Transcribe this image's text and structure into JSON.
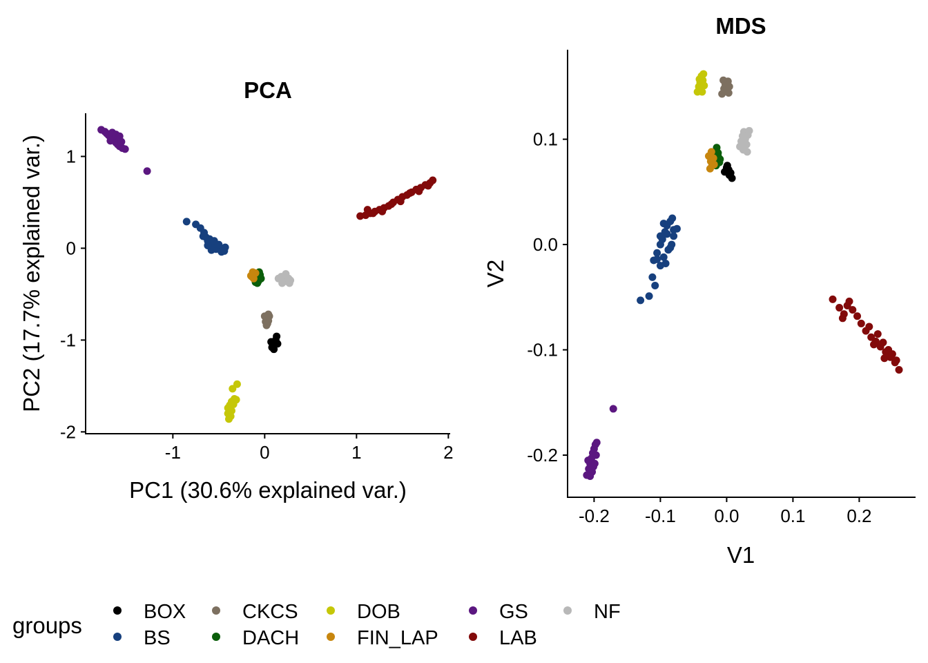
{
  "colors": {
    "BOX": "#000000",
    "BS": "#17407e",
    "CKCS": "#7d7060",
    "DACH": "#0b5e0b",
    "DOB": "#c5c708",
    "FIN_LAP": "#c7860e",
    "GS": "#5b1780",
    "LAB": "#820a0a",
    "NF": "#b8b8b8"
  },
  "legend": {
    "title": "groups",
    "items": [
      "BOX",
      "BS",
      "CKCS",
      "DACH",
      "DOB",
      "FIN_LAP",
      "GS",
      "LAB",
      "NF"
    ]
  },
  "chart_data": [
    {
      "type": "scatter",
      "title": "PCA",
      "xlabel": "PC1 (30.6% explained var.)",
      "ylabel": "PC2 (17.7% explained var.)",
      "xlim": [
        -1.95,
        2.02
      ],
      "ylim": [
        -2.02,
        1.47
      ],
      "xticks": [
        -1,
        0,
        1,
        2
      ],
      "xtick_labels": [
        "-1",
        "0",
        "1",
        "2"
      ],
      "yticks": [
        -2,
        -1,
        0,
        1
      ],
      "ytick_labels": [
        "-2",
        "-1",
        "0",
        "1"
      ],
      "grid": false,
      "series": [
        {
          "name": "BOX",
          "points": [
            [
              0.07,
              -1.02
            ],
            [
              0.09,
              -1.06
            ],
            [
              0.1,
              -1.1
            ],
            [
              0.12,
              -1.0
            ],
            [
              0.13,
              -0.96
            ],
            [
              0.14,
              -1.04
            ],
            [
              0.08,
              -1.08
            ],
            [
              0.11,
              -1.03
            ]
          ]
        },
        {
          "name": "BS",
          "points": [
            [
              -0.85,
              0.29
            ],
            [
              -0.75,
              0.26
            ],
            [
              -0.7,
              0.22
            ],
            [
              -0.66,
              0.17
            ],
            [
              -0.64,
              0.12
            ],
            [
              -0.6,
              0.1
            ],
            [
              -0.58,
              0.06
            ],
            [
              -0.55,
              0.04
            ],
            [
              -0.52,
              0.02
            ],
            [
              -0.5,
              0.0
            ],
            [
              -0.48,
              -0.02
            ],
            [
              -0.45,
              -0.01
            ],
            [
              -0.44,
              -0.03
            ],
            [
              -0.47,
              -0.04
            ],
            [
              -0.53,
              -0.01
            ],
            [
              -0.57,
              0.03
            ],
            [
              -0.62,
              0.08
            ],
            [
              -0.67,
              0.13
            ],
            [
              -0.55,
              0.08
            ],
            [
              -0.5,
              0.04
            ],
            [
              -0.43,
              0.01
            ],
            [
              -0.58,
              -0.02
            ],
            [
              -0.62,
              0.03
            ],
            [
              -0.46,
              -0.03
            ]
          ]
        },
        {
          "name": "CKCS",
          "points": [
            [
              0.0,
              -0.74
            ],
            [
              0.02,
              -0.76
            ],
            [
              0.04,
              -0.79
            ],
            [
              0.03,
              -0.82
            ],
            [
              0.01,
              -0.8
            ],
            [
              0.05,
              -0.74
            ],
            [
              0.02,
              -0.84
            ],
            [
              0.04,
              -0.72
            ]
          ]
        },
        {
          "name": "DACH",
          "points": [
            [
              -0.1,
              -0.28
            ],
            [
              -0.08,
              -0.3
            ],
            [
              -0.06,
              -0.32
            ],
            [
              -0.09,
              -0.34
            ],
            [
              -0.07,
              -0.36
            ],
            [
              -0.05,
              -0.29
            ],
            [
              -0.1,
              -0.37
            ],
            [
              -0.06,
              -0.26
            ],
            [
              -0.08,
              -0.38
            ],
            [
              -0.04,
              -0.33
            ]
          ]
        },
        {
          "name": "DOB",
          "points": [
            [
              -0.3,
              -1.48
            ],
            [
              -0.35,
              -1.53
            ],
            [
              -0.33,
              -1.64
            ],
            [
              -0.36,
              -1.67
            ],
            [
              -0.38,
              -1.71
            ],
            [
              -0.4,
              -1.74
            ],
            [
              -0.36,
              -1.77
            ],
            [
              -0.4,
              -1.8
            ],
            [
              -0.37,
              -1.83
            ],
            [
              -0.39,
              -1.86
            ],
            [
              -0.34,
              -1.7
            ],
            [
              -0.31,
              -1.65
            ]
          ]
        },
        {
          "name": "FIN_LAP",
          "points": [
            [
              -0.15,
              -0.3
            ],
            [
              -0.13,
              -0.26
            ],
            [
              -0.12,
              -0.33
            ],
            [
              -0.1,
              -0.27
            ],
            [
              -0.14,
              -0.31
            ]
          ]
        },
        {
          "name": "GS",
          "points": [
            [
              -1.78,
              1.29
            ],
            [
              -1.74,
              1.27
            ],
            [
              -1.72,
              1.25
            ],
            [
              -1.7,
              1.23
            ],
            [
              -1.68,
              1.21
            ],
            [
              -1.66,
              1.2
            ],
            [
              -1.64,
              1.18
            ],
            [
              -1.62,
              1.15
            ],
            [
              -1.6,
              1.13
            ],
            [
              -1.58,
              1.11
            ],
            [
              -1.55,
              1.09
            ],
            [
              -1.52,
              1.08
            ],
            [
              -1.66,
              1.26
            ],
            [
              -1.62,
              1.24
            ],
            [
              -1.58,
              1.22
            ],
            [
              -1.56,
              1.16
            ],
            [
              -1.68,
              1.17
            ],
            [
              -1.28,
              0.84
            ]
          ]
        },
        {
          "name": "LAB",
          "points": [
            [
              1.04,
              0.35
            ],
            [
              1.1,
              0.36
            ],
            [
              1.15,
              0.38
            ],
            [
              1.2,
              0.4
            ],
            [
              1.25,
              0.42
            ],
            [
              1.3,
              0.44
            ],
            [
              1.35,
              0.46
            ],
            [
              1.4,
              0.5
            ],
            [
              1.45,
              0.53
            ],
            [
              1.5,
              0.56
            ],
            [
              1.55,
              0.58
            ],
            [
              1.6,
              0.61
            ],
            [
              1.65,
              0.64
            ],
            [
              1.7,
              0.66
            ],
            [
              1.75,
              0.69
            ],
            [
              1.8,
              0.71
            ],
            [
              1.83,
              0.74
            ],
            [
              1.12,
              0.42
            ],
            [
              1.18,
              0.38
            ],
            [
              1.28,
              0.4
            ],
            [
              1.38,
              0.48
            ],
            [
              1.48,
              0.51
            ],
            [
              1.58,
              0.6
            ],
            [
              1.68,
              0.62
            ],
            [
              1.78,
              0.68
            ]
          ]
        },
        {
          "name": "NF",
          "points": [
            [
              0.15,
              -0.33
            ],
            [
              0.18,
              -0.31
            ],
            [
              0.2,
              -0.35
            ],
            [
              0.22,
              -0.3
            ],
            [
              0.24,
              -0.36
            ],
            [
              0.26,
              -0.33
            ],
            [
              0.28,
              -0.35
            ],
            [
              0.19,
              -0.38
            ],
            [
              0.23,
              -0.28
            ],
            [
              0.27,
              -0.38
            ]
          ]
        }
      ]
    },
    {
      "type": "scatter",
      "title": "MDS",
      "xlabel": "V1",
      "ylabel": "V2",
      "xlim": [
        -0.24,
        0.285
      ],
      "ylim": [
        -0.24,
        0.185
      ],
      "xticks": [
        -0.2,
        -0.1,
        0.0,
        0.1,
        0.2
      ],
      "xtick_labels": [
        "-0.2",
        "-0.1",
        "0.0",
        "0.1",
        "0.2"
      ],
      "yticks": [
        -0.2,
        -0.1,
        0.0,
        0.1
      ],
      "ytick_labels": [
        "-0.2",
        "-0.1",
        "0.0",
        "0.1"
      ],
      "grid": false,
      "series": [
        {
          "name": "BOX",
          "points": [
            [
              -0.003,
              0.069
            ],
            [
              0.0,
              0.073
            ],
            [
              0.003,
              0.071
            ],
            [
              0.006,
              0.068
            ],
            [
              0.008,
              0.063
            ],
            [
              0.004,
              0.066
            ],
            [
              0.001,
              0.075
            ]
          ]
        },
        {
          "name": "BS",
          "points": [
            [
              -0.13,
              -0.053
            ],
            [
              -0.117,
              -0.049
            ],
            [
              -0.108,
              -0.039
            ],
            [
              -0.112,
              -0.031
            ],
            [
              -0.11,
              -0.015
            ],
            [
              -0.105,
              -0.008
            ],
            [
              -0.1,
              0.0
            ],
            [
              -0.097,
              0.005
            ],
            [
              -0.093,
              0.012
            ],
            [
              -0.09,
              0.018
            ],
            [
              -0.085,
              0.022
            ],
            [
              -0.082,
              0.025
            ],
            [
              -0.08,
              0.014
            ],
            [
              -0.088,
              -0.005
            ],
            [
              -0.095,
              -0.012
            ],
            [
              -0.1,
              -0.02
            ],
            [
              -0.092,
              -0.018
            ],
            [
              -0.085,
              -0.003
            ],
            [
              -0.08,
              0.008
            ],
            [
              -0.075,
              0.015
            ],
            [
              -0.09,
              0.01
            ],
            [
              -0.1,
              0.008
            ],
            [
              -0.105,
              -0.014
            ],
            [
              -0.083,
              0.0
            ],
            [
              -0.095,
              0.02
            ]
          ]
        },
        {
          "name": "CKCS",
          "points": [
            [
              -0.007,
              0.143
            ],
            [
              -0.004,
              0.148
            ],
            [
              -0.002,
              0.152
            ],
            [
              0.0,
              0.147
            ],
            [
              0.002,
              0.155
            ],
            [
              0.004,
              0.15
            ],
            [
              0.003,
              0.144
            ],
            [
              -0.005,
              0.156
            ]
          ]
        },
        {
          "name": "DACH",
          "points": [
            [
              -0.019,
              0.083
            ],
            [
              -0.017,
              0.088
            ],
            [
              -0.015,
              0.092
            ],
            [
              -0.013,
              0.084
            ],
            [
              -0.011,
              0.078
            ],
            [
              -0.016,
              0.075
            ],
            [
              -0.013,
              0.087
            ],
            [
              -0.01,
              0.081
            ],
            [
              -0.018,
              0.079
            ]
          ]
        },
        {
          "name": "DOB",
          "points": [
            [
              -0.044,
              0.145
            ],
            [
              -0.042,
              0.15
            ],
            [
              -0.04,
              0.154
            ],
            [
              -0.038,
              0.16
            ],
            [
              -0.036,
              0.156
            ],
            [
              -0.034,
              0.151
            ],
            [
              -0.037,
              0.145
            ],
            [
              -0.041,
              0.157
            ],
            [
              -0.035,
              0.162
            ],
            [
              -0.039,
              0.148
            ]
          ]
        },
        {
          "name": "FIN_LAP",
          "points": [
            [
              -0.027,
              0.084
            ],
            [
              -0.024,
              0.079
            ],
            [
              -0.022,
              0.075
            ],
            [
              -0.025,
              0.072
            ],
            [
              -0.02,
              0.082
            ],
            [
              -0.023,
              0.088
            ],
            [
              -0.019,
              0.076
            ]
          ]
        },
        {
          "name": "GS",
          "points": [
            [
              -0.211,
              -0.219
            ],
            [
              -0.208,
              -0.213
            ],
            [
              -0.206,
              -0.208
            ],
            [
              -0.204,
              -0.203
            ],
            [
              -0.202,
              -0.198
            ],
            [
              -0.2,
              -0.194
            ],
            [
              -0.198,
              -0.19
            ],
            [
              -0.196,
              -0.188
            ],
            [
              -0.203,
              -0.216
            ],
            [
              -0.199,
              -0.208
            ],
            [
              -0.197,
              -0.2
            ],
            [
              -0.206,
              -0.22
            ],
            [
              -0.209,
              -0.205
            ],
            [
              -0.201,
              -0.211
            ],
            [
              -0.171,
              -0.156
            ]
          ]
        },
        {
          "name": "LAB",
          "points": [
            [
              0.16,
              -0.052
            ],
            [
              0.17,
              -0.06
            ],
            [
              0.177,
              -0.066
            ],
            [
              0.185,
              -0.054
            ],
            [
              0.19,
              -0.062
            ],
            [
              0.197,
              -0.068
            ],
            [
              0.203,
              -0.075
            ],
            [
              0.21,
              -0.082
            ],
            [
              0.218,
              -0.088
            ],
            [
              0.225,
              -0.092
            ],
            [
              0.232,
              -0.097
            ],
            [
              0.24,
              -0.102
            ],
            [
              0.247,
              -0.107
            ],
            [
              0.254,
              -0.112
            ],
            [
              0.26,
              -0.119
            ],
            [
              0.175,
              -0.07
            ],
            [
              0.182,
              -0.058
            ],
            [
              0.215,
              -0.078
            ],
            [
              0.228,
              -0.085
            ],
            [
              0.236,
              -0.093
            ],
            [
              0.244,
              -0.1
            ],
            [
              0.25,
              -0.104
            ],
            [
              0.256,
              -0.11
            ],
            [
              0.222,
              -0.095
            ],
            [
              0.238,
              -0.108
            ]
          ]
        },
        {
          "name": "NF",
          "points": [
            [
              0.02,
              0.093
            ],
            [
              0.022,
              0.098
            ],
            [
              0.024,
              0.103
            ],
            [
              0.026,
              0.107
            ],
            [
              0.028,
              0.1
            ],
            [
              0.03,
              0.095
            ],
            [
              0.032,
              0.104
            ],
            [
              0.034,
              0.108
            ],
            [
              0.025,
              0.09
            ],
            [
              0.031,
              0.088
            ]
          ]
        }
      ]
    }
  ]
}
